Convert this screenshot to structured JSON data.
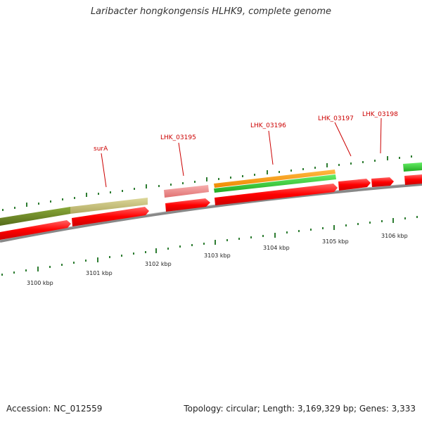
{
  "title": "Laribacter hongkongensis HLHK9, complete genome",
  "footer": {
    "accession": "Accession: NC_012559",
    "summary": "Topology: circular; Length: 3,169,329 bp; Genes: 3,333"
  },
  "colors": {
    "cds_red": "#ff0000",
    "cds_pink": "#f08080",
    "olive_dark": "#6b8e23",
    "olive_light": "#c8c27a",
    "orange": "#ff9900",
    "green": "#33cc33",
    "backbone": "#888888",
    "tick_green": "#2e7d32",
    "label_red": "#cc0000"
  },
  "gene_labels": [
    "surA",
    "LHK_03195",
    "LHK_03196",
    "LHK_03197",
    "LHK_03198"
  ],
  "scale_labels": [
    "3100 kbp",
    "3101 kbp",
    "3102 kbp",
    "3103 kbp",
    "3104 kbp",
    "3105 kbp",
    "3106 kbp"
  ]
}
